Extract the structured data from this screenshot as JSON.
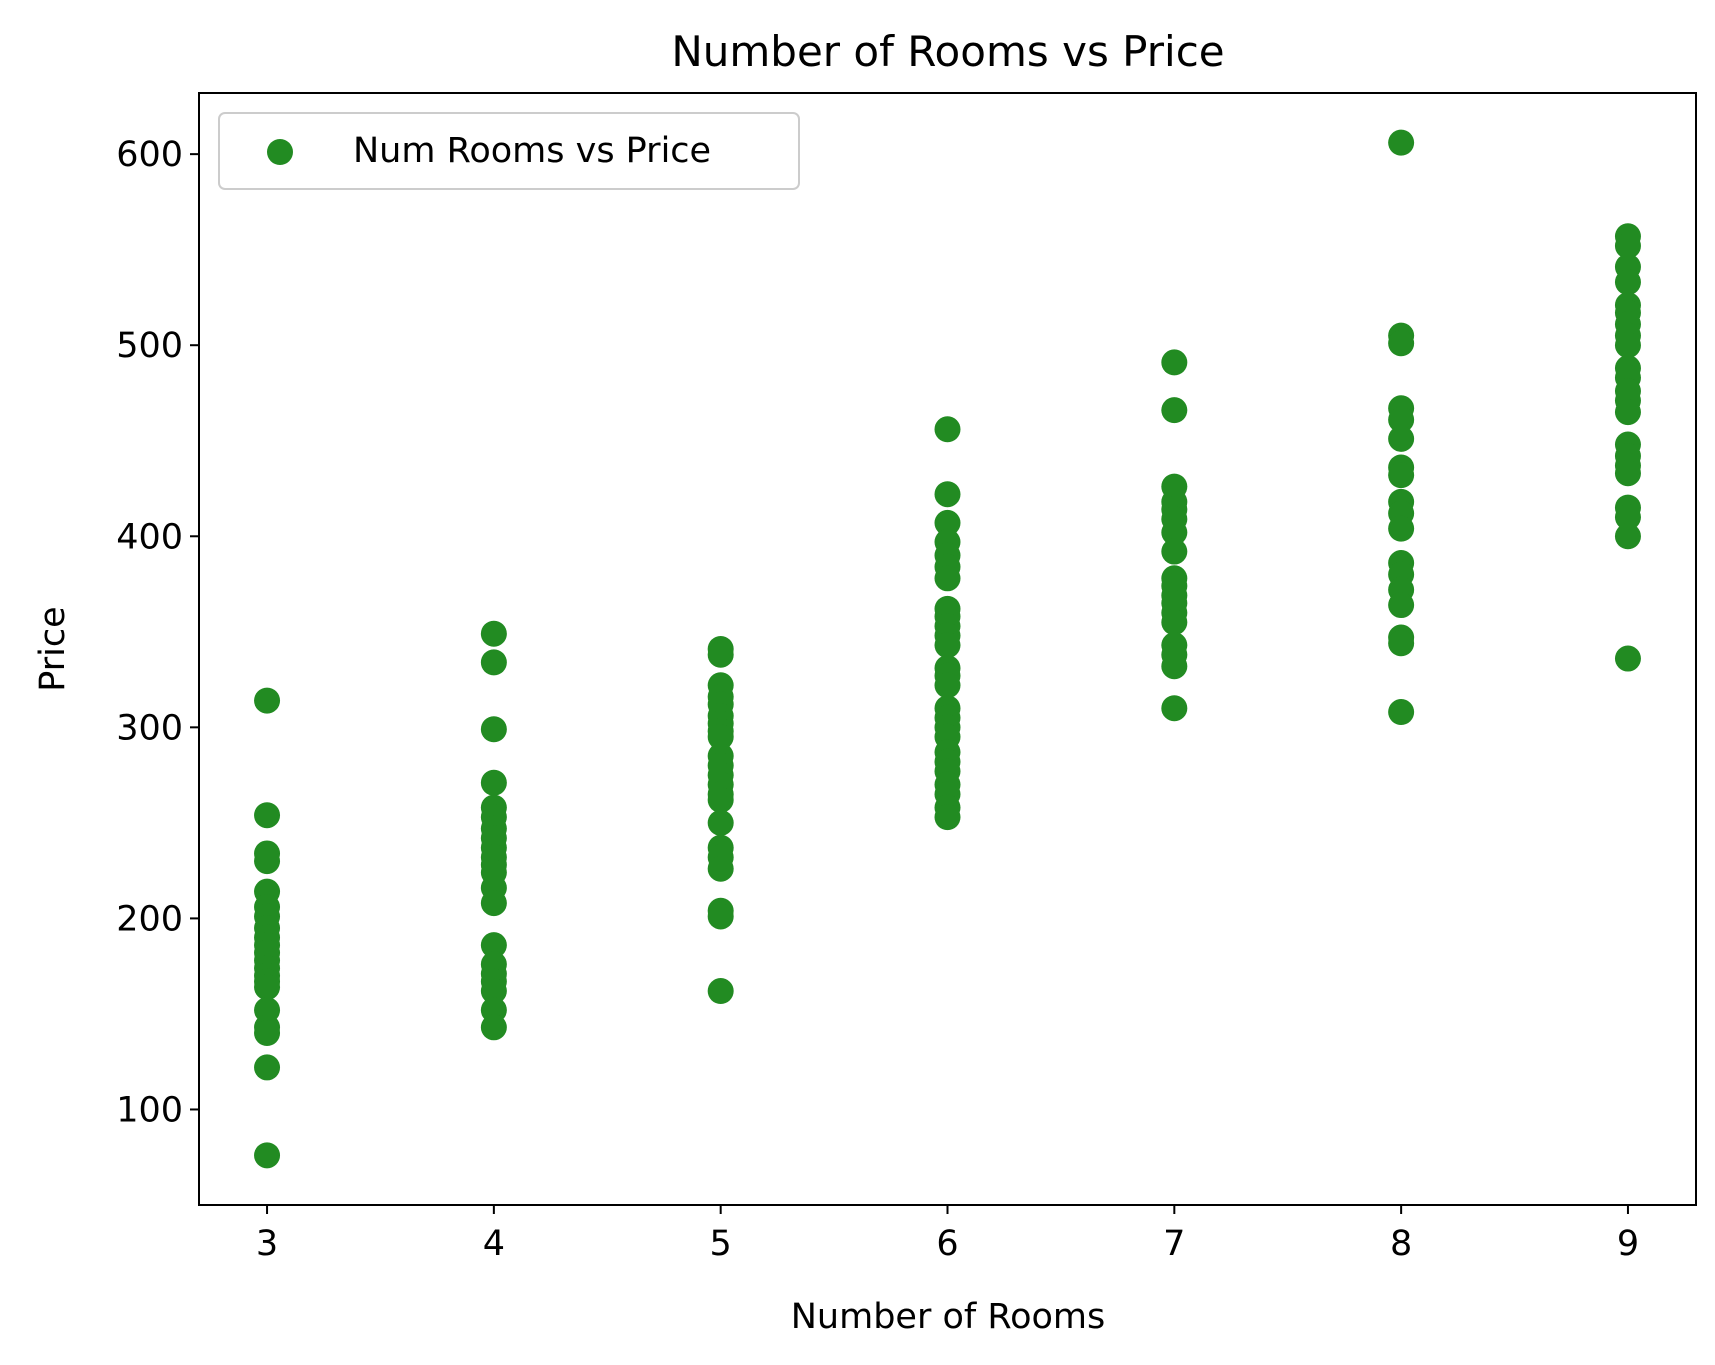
{
  "chart_data": {
    "type": "scatter",
    "title": "Number of Rooms vs Price",
    "xlabel": "Number of Rooms",
    "ylabel": "Price",
    "xlim": [
      2.7,
      9.3
    ],
    "ylim": [
      50,
      632
    ],
    "xticks": [
      3,
      4,
      5,
      6,
      7,
      8,
      9
    ],
    "yticks": [
      100,
      200,
      300,
      400,
      500,
      600
    ],
    "grid": false,
    "legend_position": "top-left",
    "series": [
      {
        "name": "Num Rooms vs Price",
        "color": "#228B22",
        "points": [
          [
            3,
            314
          ],
          [
            3,
            254
          ],
          [
            3,
            234
          ],
          [
            3,
            230
          ],
          [
            3,
            214
          ],
          [
            3,
            206
          ],
          [
            3,
            201
          ],
          [
            3,
            195
          ],
          [
            3,
            190
          ],
          [
            3,
            186
          ],
          [
            3,
            182
          ],
          [
            3,
            178
          ],
          [
            3,
            174
          ],
          [
            3,
            170
          ],
          [
            3,
            167
          ],
          [
            3,
            164
          ],
          [
            3,
            152
          ],
          [
            3,
            143
          ],
          [
            3,
            140
          ],
          [
            3,
            122
          ],
          [
            3,
            76
          ],
          [
            4,
            349
          ],
          [
            4,
            334
          ],
          [
            4,
            299
          ],
          [
            4,
            271
          ],
          [
            4,
            258
          ],
          [
            4,
            253
          ],
          [
            4,
            247
          ],
          [
            4,
            242
          ],
          [
            4,
            237
          ],
          [
            4,
            232
          ],
          [
            4,
            228
          ],
          [
            4,
            224
          ],
          [
            4,
            216
          ],
          [
            4,
            208
          ],
          [
            4,
            186
          ],
          [
            4,
            176
          ],
          [
            4,
            171
          ],
          [
            4,
            167
          ],
          [
            4,
            162
          ],
          [
            4,
            152
          ],
          [
            4,
            143
          ],
          [
            5,
            341
          ],
          [
            5,
            338
          ],
          [
            5,
            322
          ],
          [
            5,
            316
          ],
          [
            5,
            312
          ],
          [
            5,
            306
          ],
          [
            5,
            302
          ],
          [
            5,
            298
          ],
          [
            5,
            295
          ],
          [
            5,
            285
          ],
          [
            5,
            280
          ],
          [
            5,
            275
          ],
          [
            5,
            270
          ],
          [
            5,
            265
          ],
          [
            5,
            262
          ],
          [
            5,
            250
          ],
          [
            5,
            237
          ],
          [
            5,
            232
          ],
          [
            5,
            226
          ],
          [
            5,
            204
          ],
          [
            5,
            201
          ],
          [
            5,
            162
          ],
          [
            6,
            456
          ],
          [
            6,
            422
          ],
          [
            6,
            407
          ],
          [
            6,
            397
          ],
          [
            6,
            390
          ],
          [
            6,
            384
          ],
          [
            6,
            378
          ],
          [
            6,
            362
          ],
          [
            6,
            358
          ],
          [
            6,
            353
          ],
          [
            6,
            348
          ],
          [
            6,
            343
          ],
          [
            6,
            331
          ],
          [
            6,
            327
          ],
          [
            6,
            322
          ],
          [
            6,
            310
          ],
          [
            6,
            305
          ],
          [
            6,
            300
          ],
          [
            6,
            295
          ],
          [
            6,
            287
          ],
          [
            6,
            282
          ],
          [
            6,
            277
          ],
          [
            6,
            270
          ],
          [
            6,
            265
          ],
          [
            6,
            258
          ],
          [
            6,
            253
          ],
          [
            7,
            491
          ],
          [
            7,
            466
          ],
          [
            7,
            426
          ],
          [
            7,
            418
          ],
          [
            7,
            414
          ],
          [
            7,
            409
          ],
          [
            7,
            402
          ],
          [
            7,
            392
          ],
          [
            7,
            378
          ],
          [
            7,
            374
          ],
          [
            7,
            369
          ],
          [
            7,
            365
          ],
          [
            7,
            360
          ],
          [
            7,
            355
          ],
          [
            7,
            343
          ],
          [
            7,
            338
          ],
          [
            7,
            332
          ],
          [
            7,
            310
          ],
          [
            8,
            606
          ],
          [
            8,
            505
          ],
          [
            8,
            501
          ],
          [
            8,
            467
          ],
          [
            8,
            461
          ],
          [
            8,
            451
          ],
          [
            8,
            436
          ],
          [
            8,
            432
          ],
          [
            8,
            418
          ],
          [
            8,
            412
          ],
          [
            8,
            404
          ],
          [
            8,
            386
          ],
          [
            8,
            380
          ],
          [
            8,
            372
          ],
          [
            8,
            364
          ],
          [
            8,
            347
          ],
          [
            8,
            344
          ],
          [
            8,
            308
          ],
          [
            9,
            557
          ],
          [
            9,
            552
          ],
          [
            9,
            541
          ],
          [
            9,
            533
          ],
          [
            9,
            521
          ],
          [
            9,
            517
          ],
          [
            9,
            511
          ],
          [
            9,
            505
          ],
          [
            9,
            500
          ],
          [
            9,
            488
          ],
          [
            9,
            483
          ],
          [
            9,
            476
          ],
          [
            9,
            471
          ],
          [
            9,
            465
          ],
          [
            9,
            448
          ],
          [
            9,
            442
          ],
          [
            9,
            437
          ],
          [
            9,
            433
          ],
          [
            9,
            415
          ],
          [
            9,
            410
          ],
          [
            9,
            400
          ],
          [
            9,
            336
          ]
        ]
      }
    ]
  }
}
